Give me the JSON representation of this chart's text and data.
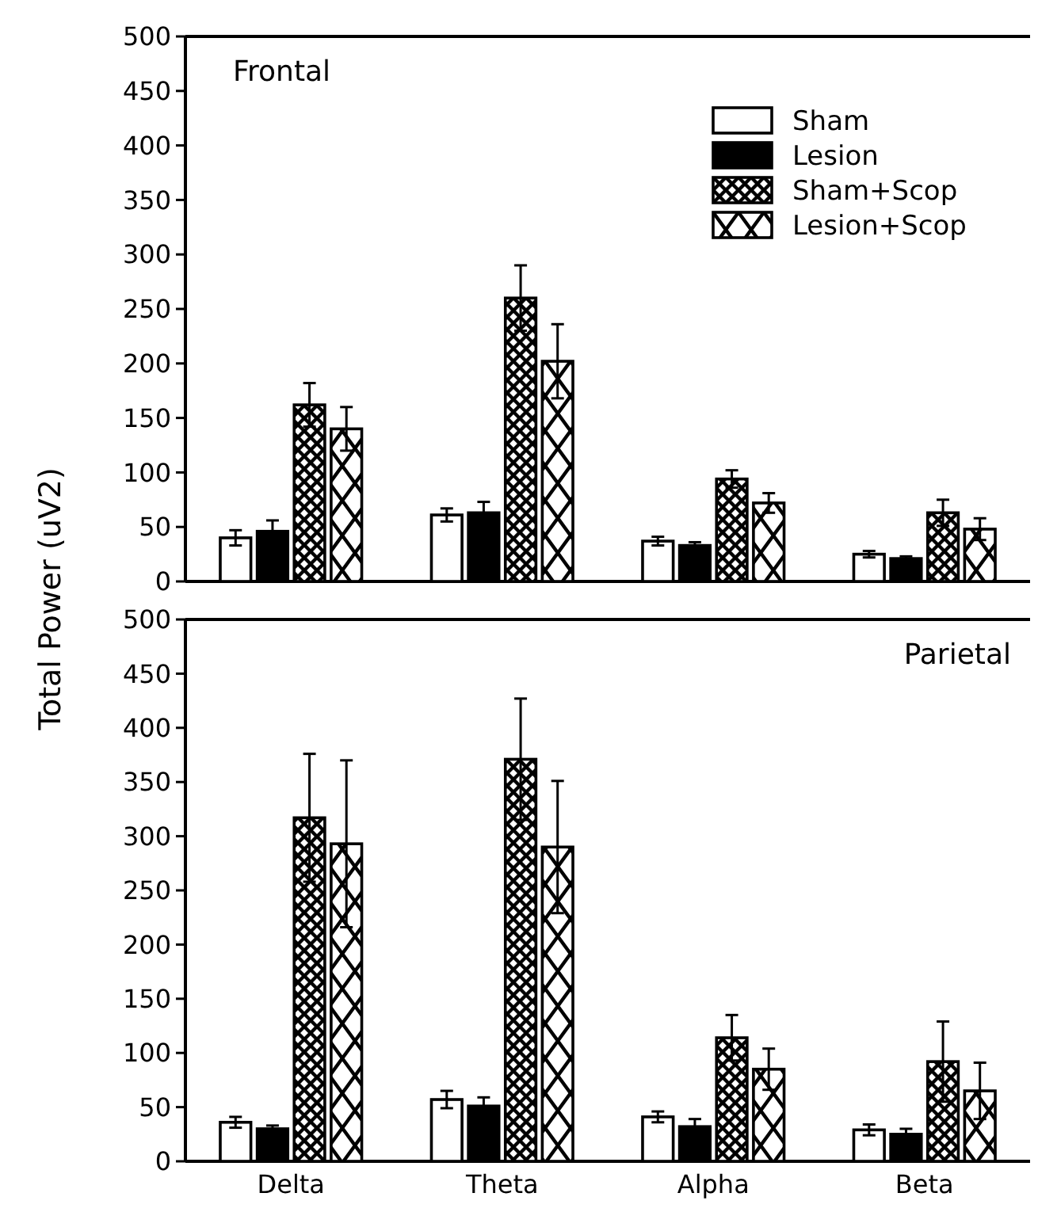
{
  "chart_data": [
    {
      "type": "bar",
      "title": "Frontal",
      "ylabel": "Total Power (uV2)",
      "categories": [
        null,
        null,
        null,
        null
      ],
      "ylim": [
        0,
        500
      ],
      "yticks": [
        0,
        50,
        100,
        150,
        200,
        250,
        300,
        350,
        400,
        450,
        500
      ],
      "legend": "top right",
      "tick_labels": "y",
      "series": [
        {
          "name": "Sham",
          "color": "#ffffff",
          "values": [
            40,
            61,
            37,
            25
          ],
          "errors": [
            7,
            6,
            4,
            3
          ]
        },
        {
          "name": "Lesion",
          "color": "#000000",
          "values": [
            46,
            63,
            33,
            21
          ],
          "errors": [
            10,
            10,
            3,
            2
          ]
        },
        {
          "name": "Sham+Scop",
          "color": "#000000",
          "values": [
            162,
            260,
            94,
            63
          ],
          "errors": [
            20,
            30,
            8,
            12
          ]
        },
        {
          "name": "Lesion+Scop",
          "color": "#000000",
          "values": [
            140,
            202,
            72,
            48
          ],
          "errors": [
            20,
            34,
            9,
            10
          ]
        }
      ]
    },
    {
      "type": "bar",
      "title": "Parietal",
      "categories": [
        "Delta",
        "Theta",
        "Alpha",
        "Beta"
      ],
      "ylim": [
        0,
        500
      ],
      "yticks": [
        0,
        50,
        100,
        150,
        200,
        250,
        300,
        350,
        400,
        450,
        500
      ],
      "series": [
        {
          "color": "#ffffff",
          "values": [
            36,
            57,
            41,
            29
          ],
          "errors": [
            5,
            8,
            5,
            5
          ]
        },
        {
          "color": "#000000",
          "values": [
            30,
            51,
            32,
            25
          ],
          "errors": [
            3,
            8,
            7,
            5
          ]
        },
        {
          "color": "#000000",
          "values": [
            317,
            371,
            114,
            92
          ],
          "errors": [
            59,
            56,
            21,
            37
          ]
        },
        {
          "color": "#000000",
          "values": [
            293,
            290,
            85,
            65
          ],
          "errors": [
            77,
            61,
            19,
            26
          ]
        }
      ]
    }
  ]
}
